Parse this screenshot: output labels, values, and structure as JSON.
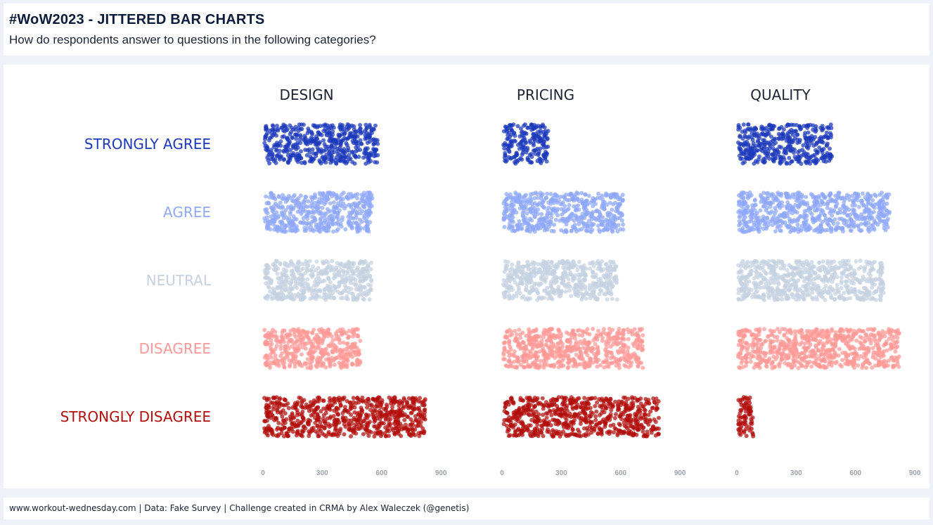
{
  "header": {
    "title": "#WoW2023 - JITTERED BAR CHARTS",
    "subtitle": "How do respondents answer to questions in the following categories?"
  },
  "footer": {
    "text": "www.workout-wednesday.com | Data: Fake Survey | Challenge created in CRMA by Alex Waleczek (@genetis)"
  },
  "chart_data": {
    "type": "scatter",
    "title": "",
    "xlabel": "",
    "ylabel": "",
    "xlim": [
      0,
      900
    ],
    "x_ticks": [
      "0",
      "300",
      "600",
      "900"
    ],
    "grid": false,
    "legend": "none",
    "categories": [
      "DESIGN",
      "PRICING",
      "QUALITY"
    ],
    "responses": [
      {
        "name": "STRONGLY AGREE",
        "color": "#1c39bb",
        "values": [
          590,
          240,
          490
        ]
      },
      {
        "name": "AGREE",
        "color": "#8fa8f8",
        "values": [
          560,
          620,
          780
        ]
      },
      {
        "name": "NEUTRAL",
        "color": "#c5d1e0",
        "values": [
          560,
          590,
          750
        ]
      },
      {
        "name": "DISAGREE",
        "color": "#ff9896",
        "values": [
          500,
          720,
          830
        ]
      },
      {
        "name": "STRONGLY DISAGREE",
        "color": "#b20e0b",
        "values": [
          830,
          800,
          90
        ]
      }
    ]
  }
}
